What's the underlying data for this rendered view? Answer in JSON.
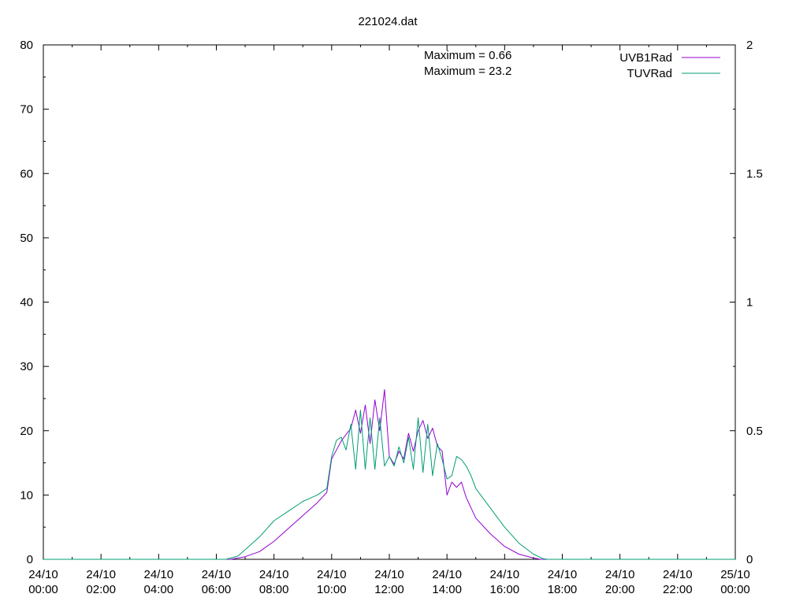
{
  "chart_data": {
    "type": "line",
    "title": "221024.dat",
    "annotations": [
      "Maximum = 0.66",
      "Maximum = 23.2"
    ],
    "xlabel": "",
    "ylabel": "",
    "x_range": [
      "24/10 00:00",
      "25/10 00:00"
    ],
    "x_ticks": [
      {
        "date": "24/10",
        "time": "00:00"
      },
      {
        "date": "24/10",
        "time": "02:00"
      },
      {
        "date": "24/10",
        "time": "04:00"
      },
      {
        "date": "24/10",
        "time": "06:00"
      },
      {
        "date": "24/10",
        "time": "08:00"
      },
      {
        "date": "24/10",
        "time": "10:00"
      },
      {
        "date": "24/10",
        "time": "12:00"
      },
      {
        "date": "24/10",
        "time": "14:00"
      },
      {
        "date": "24/10",
        "time": "16:00"
      },
      {
        "date": "24/10",
        "time": "18:00"
      },
      {
        "date": "24/10",
        "time": "20:00"
      },
      {
        "date": "24/10",
        "time": "22:00"
      },
      {
        "date": "25/10",
        "time": "00:00"
      }
    ],
    "y_left": {
      "ylim": [
        0,
        80
      ],
      "ticks": [
        "0",
        "10",
        "20",
        "30",
        "40",
        "50",
        "60",
        "70",
        "80"
      ]
    },
    "y_right": {
      "ylim": [
        0,
        2
      ],
      "ticks": [
        "0",
        "0.5",
        "1",
        "1.5",
        "2"
      ]
    },
    "grid": false,
    "legend_position": "top-right",
    "series": [
      {
        "name": "UVB1Rad",
        "axis": "right",
        "color": "#9400d3",
        "x": [
          "06:30",
          "07:00",
          "07:30",
          "08:00",
          "08:30",
          "09:00",
          "09:30",
          "09:50",
          "10:00",
          "10:20",
          "10:40",
          "10:50",
          "11:00",
          "11:10",
          "11:20",
          "11:30",
          "11:40",
          "11:50",
          "12:00",
          "12:10",
          "12:20",
          "12:30",
          "12:40",
          "12:50",
          "13:00",
          "13:10",
          "13:20",
          "13:30",
          "13:40",
          "13:50",
          "14:00",
          "14:10",
          "14:20",
          "14:30",
          "14:40",
          "14:50",
          "15:00",
          "15:30",
          "16:00",
          "16:30",
          "17:00",
          "17:15",
          "17:20"
        ],
        "values": [
          0.0,
          0.01,
          0.03,
          0.07,
          0.12,
          0.17,
          0.22,
          0.26,
          0.39,
          0.46,
          0.51,
          0.58,
          0.49,
          0.6,
          0.45,
          0.62,
          0.5,
          0.66,
          0.4,
          0.37,
          0.42,
          0.39,
          0.49,
          0.42,
          0.5,
          0.54,
          0.47,
          0.51,
          0.44,
          0.42,
          0.25,
          0.3,
          0.28,
          0.3,
          0.24,
          0.2,
          0.16,
          0.1,
          0.05,
          0.02,
          0.005,
          0.0,
          0.0
        ]
      },
      {
        "name": "TUVRad",
        "axis": "left",
        "color": "#009e73",
        "x": [
          "06:20",
          "06:45",
          "07:00",
          "07:30",
          "08:00",
          "08:30",
          "09:00",
          "09:30",
          "09:50",
          "10:00",
          "10:10",
          "10:20",
          "10:30",
          "10:40",
          "10:50",
          "11:00",
          "11:10",
          "11:20",
          "11:30",
          "11:40",
          "11:50",
          "12:00",
          "12:10",
          "12:20",
          "12:30",
          "12:40",
          "12:50",
          "13:00",
          "13:10",
          "13:20",
          "13:30",
          "13:40",
          "13:50",
          "14:00",
          "14:10",
          "14:20",
          "14:30",
          "14:40",
          "14:50",
          "15:00",
          "15:30",
          "16:00",
          "16:30",
          "17:00",
          "17:20",
          "17:30"
        ],
        "values": [
          0.0,
          0.5,
          1.5,
          3.5,
          6.0,
          7.5,
          9.0,
          10.0,
          11.0,
          16.0,
          18.5,
          19.0,
          17.0,
          21.0,
          14.0,
          23.2,
          14.0,
          22.0,
          14.0,
          22.0,
          14.5,
          16.0,
          14.5,
          17.5,
          15.0,
          19.0,
          14.0,
          22.0,
          13.5,
          21.0,
          13.0,
          18.0,
          15.5,
          12.5,
          13.0,
          16.0,
          15.5,
          14.5,
          13.0,
          11.0,
          8.0,
          5.0,
          2.5,
          0.8,
          0.1,
          0.0
        ]
      }
    ]
  }
}
